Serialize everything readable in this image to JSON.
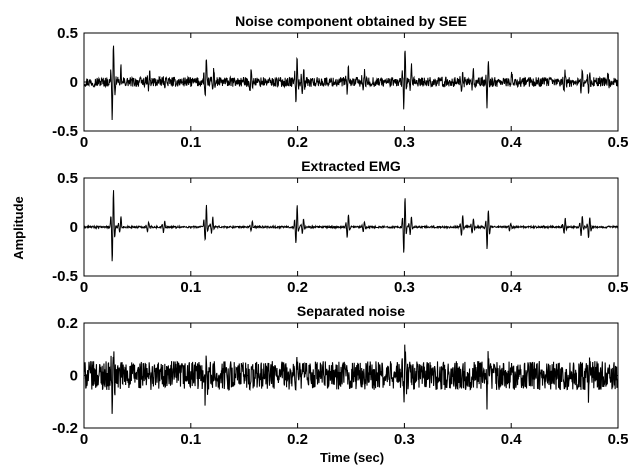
{
  "figure": {
    "ylabel": "Amplitude",
    "xlabel": "Time (sec)"
  },
  "chart_data": [
    {
      "type": "line",
      "title": "Noise component obtained by SEE",
      "xlabel": "",
      "ylabel": "",
      "xlim": [
        0,
        0.5
      ],
      "ylim": [
        -0.5,
        0.5
      ],
      "xticks": [
        0,
        0.1,
        0.2,
        0.3,
        0.4,
        0.5
      ],
      "xtick_labels": [
        "0",
        "0.1",
        "0.2",
        "0.3",
        "0.4",
        "0.5"
      ],
      "yticks": [
        -0.5,
        0,
        0.5
      ],
      "ytick_labels": [
        "-0.5",
        "0",
        "0.5"
      ],
      "grid": false,
      "series": [
        {
          "color": "#000000",
          "spikes": [
            {
              "t": 0.027,
              "peak": 0.45,
              "trough": -0.43
            },
            {
              "t": 0.034,
              "peak": 0.17,
              "trough": -0.1
            },
            {
              "t": 0.061,
              "peak": 0.1,
              "trough": -0.08
            },
            {
              "t": 0.076,
              "peak": 0.1,
              "trough": -0.08
            },
            {
              "t": 0.114,
              "peak": 0.26,
              "trough": -0.17
            },
            {
              "t": 0.121,
              "peak": 0.15,
              "trough": -0.1
            },
            {
              "t": 0.156,
              "peak": 0.12,
              "trough": -0.08
            },
            {
              "t": 0.199,
              "peak": 0.28,
              "trough": -0.2
            },
            {
              "t": 0.205,
              "peak": 0.16,
              "trough": -0.12
            },
            {
              "t": 0.247,
              "peak": 0.17,
              "trough": -0.15
            },
            {
              "t": 0.262,
              "peak": 0.1,
              "trough": -0.08
            },
            {
              "t": 0.3,
              "peak": 0.36,
              "trough": -0.32
            },
            {
              "t": 0.306,
              "peak": 0.18,
              "trough": -0.12
            },
            {
              "t": 0.354,
              "peak": 0.15,
              "trough": -0.12
            },
            {
              "t": 0.364,
              "peak": 0.12,
              "trough": -0.1
            },
            {
              "t": 0.378,
              "peak": 0.22,
              "trough": -0.28
            },
            {
              "t": 0.4,
              "peak": 0.08,
              "trough": -0.06
            },
            {
              "t": 0.45,
              "peak": 0.12,
              "trough": -0.1
            },
            {
              "t": 0.466,
              "peak": 0.16,
              "trough": -0.12
            },
            {
              "t": 0.473,
              "peak": 0.13,
              "trough": -0.15
            },
            {
              "t": 0.49,
              "peak": 0.08,
              "trough": -0.06
            }
          ],
          "noise_amplitude": 0.05
        }
      ]
    },
    {
      "type": "line",
      "title": "Extracted EMG",
      "xlabel": "",
      "ylabel": "",
      "xlim": [
        0,
        0.5
      ],
      "ylim": [
        -0.5,
        0.5
      ],
      "xticks": [
        0,
        0.1,
        0.2,
        0.3,
        0.4,
        0.5
      ],
      "xtick_labels": [
        "0",
        "0.1",
        "0.2",
        "0.3",
        "0.4",
        "0.5"
      ],
      "yticks": [
        -0.5,
        0,
        0.5
      ],
      "ytick_labels": [
        "-0.5",
        "0",
        "0.5"
      ],
      "grid": false,
      "series": [
        {
          "color": "#000000",
          "spikes": [
            {
              "t": 0.027,
              "peak": 0.44,
              "trough": -0.42
            },
            {
              "t": 0.034,
              "peak": 0.13,
              "trough": -0.06
            },
            {
              "t": 0.06,
              "peak": 0.06,
              "trough": -0.05
            },
            {
              "t": 0.075,
              "peak": 0.07,
              "trough": -0.06
            },
            {
              "t": 0.114,
              "peak": 0.26,
              "trough": -0.16
            },
            {
              "t": 0.12,
              "peak": 0.12,
              "trough": -0.07
            },
            {
              "t": 0.157,
              "peak": 0.07,
              "trough": -0.05
            },
            {
              "t": 0.199,
              "peak": 0.27,
              "trough": -0.19
            },
            {
              "t": 0.205,
              "peak": 0.1,
              "trough": -0.08
            },
            {
              "t": 0.247,
              "peak": 0.16,
              "trough": -0.13
            },
            {
              "t": 0.262,
              "peak": 0.07,
              "trough": -0.05
            },
            {
              "t": 0.3,
              "peak": 0.35,
              "trough": -0.3
            },
            {
              "t": 0.306,
              "peak": 0.12,
              "trough": -0.09
            },
            {
              "t": 0.354,
              "peak": 0.14,
              "trough": -0.11
            },
            {
              "t": 0.364,
              "peak": 0.1,
              "trough": -0.08
            },
            {
              "t": 0.378,
              "peak": 0.21,
              "trough": -0.27
            },
            {
              "t": 0.399,
              "peak": 0.05,
              "trough": -0.04
            },
            {
              "t": 0.45,
              "peak": 0.1,
              "trough": -0.08
            },
            {
              "t": 0.466,
              "peak": 0.14,
              "trough": -0.1
            },
            {
              "t": 0.473,
              "peak": 0.12,
              "trough": -0.14
            }
          ],
          "noise_amplitude": 0.01
        }
      ]
    },
    {
      "type": "line",
      "title": "Separated noise",
      "xlabel": "Time (sec)",
      "ylabel": "",
      "xlim": [
        0,
        0.5
      ],
      "ylim": [
        -0.2,
        0.2
      ],
      "xticks": [
        0,
        0.1,
        0.2,
        0.3,
        0.4,
        0.5
      ],
      "xtick_labels": [
        "0",
        "0.1",
        "0.2",
        "0.3",
        "0.4",
        "0.5"
      ],
      "yticks": [
        -0.2,
        0,
        0.2
      ],
      "ytick_labels": [
        "-0.2",
        "0",
        "0.2"
      ],
      "grid": false,
      "series": [
        {
          "color": "#000000",
          "spikes": [
            {
              "t": 0.027,
              "peak": 0.09,
              "trough": -0.13
            },
            {
              "t": 0.114,
              "peak": 0.12,
              "trough": -0.09
            },
            {
              "t": 0.199,
              "peak": 0.09,
              "trough": -0.08
            },
            {
              "t": 0.3,
              "peak": 0.1,
              "trough": -0.09
            },
            {
              "t": 0.378,
              "peak": 0.08,
              "trough": -0.1
            },
            {
              "t": 0.473,
              "peak": 0.08,
              "trough": -0.08
            }
          ],
          "noise_amplitude": 0.055
        }
      ]
    }
  ]
}
